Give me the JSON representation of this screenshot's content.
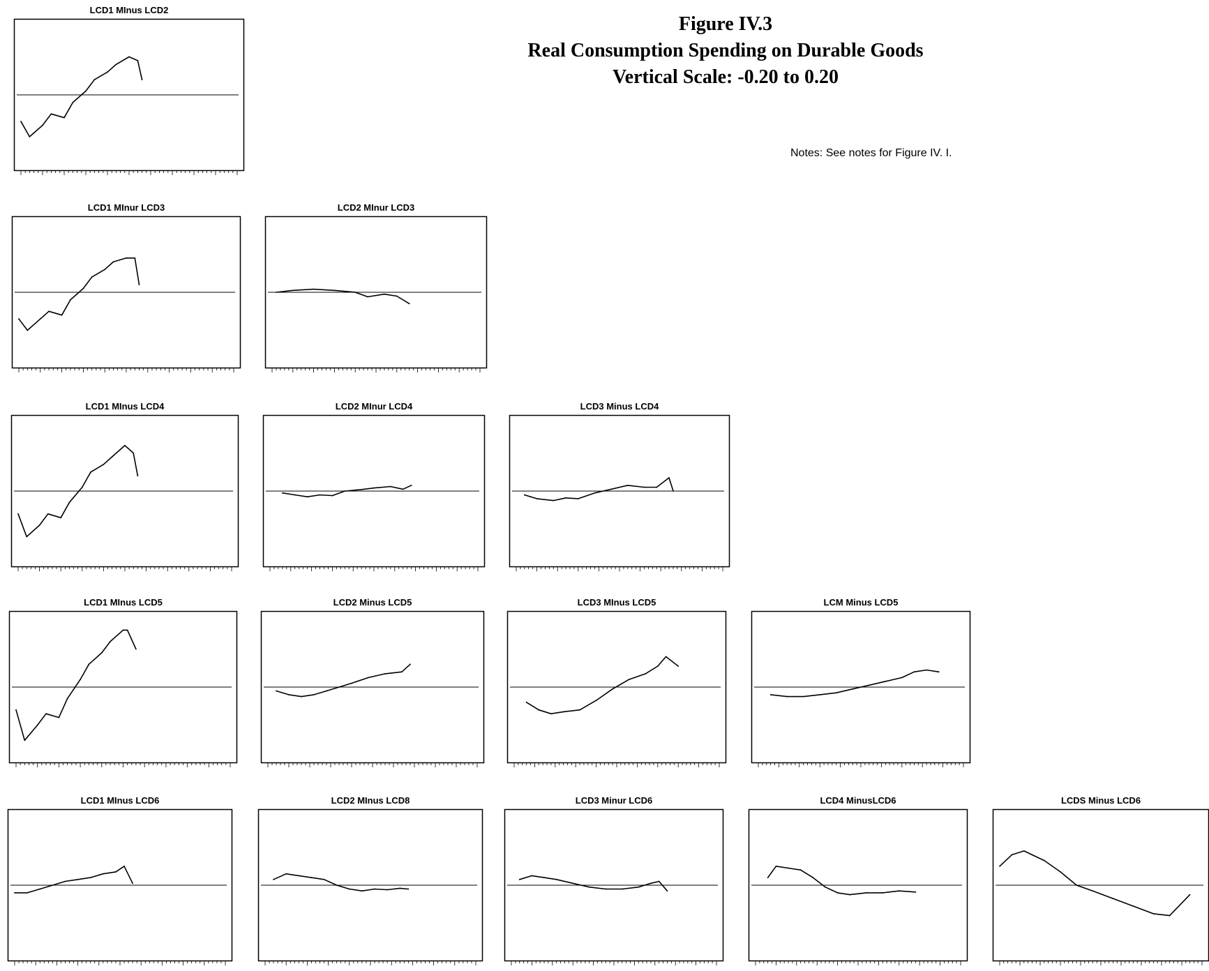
{
  "figure": {
    "title": "Figure IV.3",
    "subtitle": "Real Consumption Spending on Durable Goods",
    "scale_note": "Vertical Scale: -0.20 to 0.20",
    "notes": "Notes: See notes for Figure IV. I."
  },
  "chart_data": [
    {
      "type": "line",
      "title": "LCD1 MInus LCD2",
      "ylim": [
        -0.2,
        0.2
      ],
      "xlim": [
        1947,
        1997
      ],
      "x": [
        1947,
        1949,
        1952,
        1954,
        1957,
        1959,
        1962,
        1964,
        1967,
        1969,
        1972,
        1974,
        1975
      ],
      "y": [
        -0.07,
        -0.11,
        -0.08,
        -0.05,
        -0.06,
        -0.02,
        0.01,
        0.04,
        0.06,
        0.08,
        0.1,
        0.09,
        0.04
      ]
    },
    {
      "type": "line",
      "title": "LCD1 MInur LCD3",
      "ylim": [
        -0.2,
        0.2
      ],
      "xlim": [
        1947,
        1997
      ],
      "x": [
        1947,
        1949,
        1952,
        1954,
        1957,
        1959,
        1962,
        1964,
        1967,
        1969,
        1972,
        1974,
        1975
      ],
      "y": [
        -0.07,
        -0.1,
        -0.07,
        -0.05,
        -0.06,
        -0.02,
        0.01,
        0.04,
        0.06,
        0.08,
        0.09,
        0.09,
        0.02
      ]
    },
    {
      "type": "line",
      "title": "LCD2 MInur LCD3",
      "ylim": [
        -0.2,
        0.2
      ],
      "xlim": [
        1947,
        1997
      ],
      "x": [
        1948,
        1952,
        1957,
        1962,
        1967,
        1970,
        1974,
        1977,
        1980
      ],
      "y": [
        0.0,
        0.005,
        0.008,
        0.005,
        0.0,
        -0.012,
        -0.005,
        -0.01,
        -0.03
      ]
    },
    {
      "type": "line",
      "title": "LCD1 MInus LCD4",
      "ylim": [
        -0.2,
        0.2
      ],
      "xlim": [
        1947,
        1997
      ],
      "x": [
        1947,
        1949,
        1952,
        1954,
        1957,
        1959,
        1962,
        1964,
        1967,
        1969,
        1972,
        1974,
        1975
      ],
      "y": [
        -0.06,
        -0.12,
        -0.09,
        -0.06,
        -0.07,
        -0.03,
        0.01,
        0.05,
        0.07,
        0.09,
        0.12,
        0.1,
        0.04
      ]
    },
    {
      "type": "line",
      "title": "LCD2 MInur LCD4",
      "ylim": [
        -0.2,
        0.2
      ],
      "xlim": [
        1947,
        1997
      ],
      "x": [
        1950,
        1953,
        1956,
        1959,
        1962,
        1965,
        1969,
        1972,
        1976,
        1979,
        1981
      ],
      "y": [
        -0.005,
        -0.01,
        -0.015,
        -0.01,
        -0.012,
        0.0,
        0.004,
        0.008,
        0.012,
        0.005,
        0.015
      ]
    },
    {
      "type": "line",
      "title": "LCD3  Minus  LCD4",
      "ylim": [
        -0.2,
        0.2
      ],
      "xlim": [
        1947,
        1997
      ],
      "x": [
        1949,
        1952,
        1956,
        1959,
        1962,
        1966,
        1970,
        1974,
        1978,
        1981,
        1984,
        1985
      ],
      "y": [
        -0.01,
        -0.02,
        -0.025,
        -0.018,
        -0.02,
        -0.005,
        0.005,
        0.015,
        0.01,
        0.01,
        0.035,
        0.0
      ]
    },
    {
      "type": "line",
      "title": "LCD1 MInus LCD5",
      "ylim": [
        -0.2,
        0.2
      ],
      "xlim": [
        1947,
        1997
      ],
      "x": [
        1947,
        1949,
        1952,
        1954,
        1957,
        1959,
        1962,
        1964,
        1967,
        1969,
        1972,
        1973,
        1975
      ],
      "y": [
        -0.06,
        -0.14,
        -0.1,
        -0.07,
        -0.08,
        -0.03,
        0.02,
        0.06,
        0.09,
        0.12,
        0.15,
        0.15,
        0.1
      ]
    },
    {
      "type": "line",
      "title": "LCD2 Minus LCD5",
      "ylim": [
        -0.2,
        0.2
      ],
      "xlim": [
        1947,
        1997
      ],
      "x": [
        1949,
        1952,
        1955,
        1958,
        1961,
        1964,
        1967,
        1971,
        1975,
        1979,
        1981
      ],
      "y": [
        -0.01,
        -0.02,
        -0.025,
        -0.02,
        -0.01,
        0.0,
        0.01,
        0.025,
        0.035,
        0.04,
        0.06
      ]
    },
    {
      "type": "line",
      "title": "LCD3 MInus LCD5",
      "ylim": [
        -0.2,
        0.2
      ],
      "xlim": [
        1947,
        1997
      ],
      "x": [
        1950,
        1953,
        1956,
        1959,
        1963,
        1967,
        1971,
        1975,
        1979,
        1982,
        1984,
        1987
      ],
      "y": [
        -0.04,
        -0.06,
        -0.07,
        -0.065,
        -0.06,
        -0.035,
        -0.005,
        0.02,
        0.035,
        0.055,
        0.08,
        0.055
      ]
    },
    {
      "type": "line",
      "title": "LCM Minus LCD5",
      "ylim": [
        -0.2,
        0.2
      ],
      "xlim": [
        1947,
        1997
      ],
      "x": [
        1950,
        1954,
        1958,
        1962,
        1966,
        1970,
        1974,
        1978,
        1982,
        1985,
        1988,
        1991
      ],
      "y": [
        -0.02,
        -0.025,
        -0.025,
        -0.02,
        -0.015,
        -0.005,
        0.005,
        0.015,
        0.025,
        0.04,
        0.045,
        0.04
      ]
    },
    {
      "type": "line",
      "title": "LCD1 MInus LCD6",
      "ylim": [
        -0.2,
        0.2
      ],
      "xlim": [
        1947,
        1997
      ],
      "x": [
        1947,
        1950,
        1953,
        1956,
        1959,
        1962,
        1965,
        1968,
        1971,
        1973,
        1975
      ],
      "y": [
        -0.02,
        -0.02,
        -0.01,
        0.0,
        0.01,
        0.015,
        0.02,
        0.03,
        0.035,
        0.05,
        0.005
      ]
    },
    {
      "type": "line",
      "title": "LCD2 MInus LCD8",
      "ylim": [
        -0.2,
        0.2
      ],
      "xlim": [
        1947,
        1997
      ],
      "x": [
        1949,
        1952,
        1955,
        1958,
        1961,
        1964,
        1967,
        1970,
        1973,
        1976,
        1979,
        1981
      ],
      "y": [
        0.015,
        0.03,
        0.025,
        0.02,
        0.015,
        0.0,
        -0.01,
        -0.015,
        -0.01,
        -0.012,
        -0.008,
        -0.01
      ]
    },
    {
      "type": "line",
      "title": "LCD3 Minur LCD6",
      "ylim": [
        -0.2,
        0.2
      ],
      "xlim": [
        1947,
        1997
      ],
      "x": [
        1949,
        1952,
        1955,
        1958,
        1962,
        1966,
        1970,
        1974,
        1978,
        1981,
        1983,
        1985
      ],
      "y": [
        0.015,
        0.025,
        0.02,
        0.015,
        0.005,
        -0.005,
        -0.01,
        -0.01,
        -0.005,
        0.005,
        0.01,
        -0.015
      ]
    },
    {
      "type": "line",
      "title": "LCD4 MinusLCD6",
      "ylim": [
        -0.2,
        0.2
      ],
      "xlim": [
        1947,
        1997
      ],
      "x": [
        1950,
        1952,
        1955,
        1958,
        1961,
        1964,
        1967,
        1970,
        1974,
        1978,
        1982,
        1986
      ],
      "y": [
        0.02,
        0.05,
        0.045,
        0.04,
        0.02,
        -0.005,
        -0.02,
        -0.025,
        -0.02,
        -0.02,
        -0.015,
        -0.018
      ]
    },
    {
      "type": "line",
      "title": "LCDS Minus LCD6",
      "ylim": [
        -0.2,
        0.2
      ],
      "xlim": [
        1947,
        1997
      ],
      "x": [
        1947,
        1950,
        1953,
        1955,
        1958,
        1962,
        1966,
        1970,
        1975,
        1980,
        1985,
        1989,
        1994
      ],
      "y": [
        0.05,
        0.08,
        0.09,
        0.08,
        0.065,
        0.035,
        0.0,
        -0.015,
        -0.035,
        -0.055,
        -0.075,
        -0.08,
        -0.025
      ]
    }
  ]
}
